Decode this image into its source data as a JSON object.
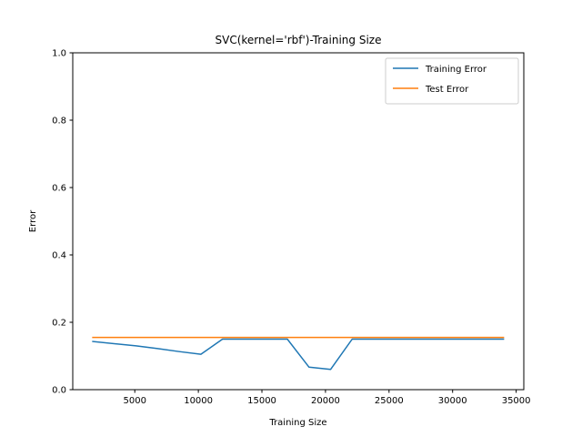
{
  "chart_data": {
    "type": "line",
    "title": "SVC(kernel='rbf')-Training Size",
    "xlabel": "Training Size",
    "ylabel": "Error",
    "xlim": [
      120,
      35600
    ],
    "ylim": [
      0,
      1.0
    ],
    "xticks": [
      5000,
      10000,
      15000,
      20000,
      25000,
      30000,
      35000
    ],
    "yticks": [
      0.0,
      0.2,
      0.4,
      0.6,
      0.8,
      1.0
    ],
    "ytick_labels": [
      "0.0",
      "0.2",
      "0.4",
      "0.6",
      "0.8",
      "1.0"
    ],
    "grid": false,
    "legend_position": "top-right",
    "series": [
      {
        "name": "Training Error",
        "color": "#1f77b4",
        "x": [
          1700,
          5100,
          6800,
          8500,
          10200,
          11900,
          13600,
          15300,
          17000,
          18700,
          20400,
          22100,
          23800,
          25500,
          27200,
          28900,
          30600,
          32300,
          34000
        ],
        "y": [
          0.143,
          0.13,
          0.122,
          0.113,
          0.105,
          0.15,
          0.15,
          0.15,
          0.15,
          0.067,
          0.06,
          0.15,
          0.15,
          0.15,
          0.15,
          0.15,
          0.15,
          0.15,
          0.15
        ]
      },
      {
        "name": "Test Error",
        "color": "#ff7f0e",
        "x": [
          1700,
          34000
        ],
        "y": [
          0.155,
          0.155
        ]
      }
    ]
  }
}
